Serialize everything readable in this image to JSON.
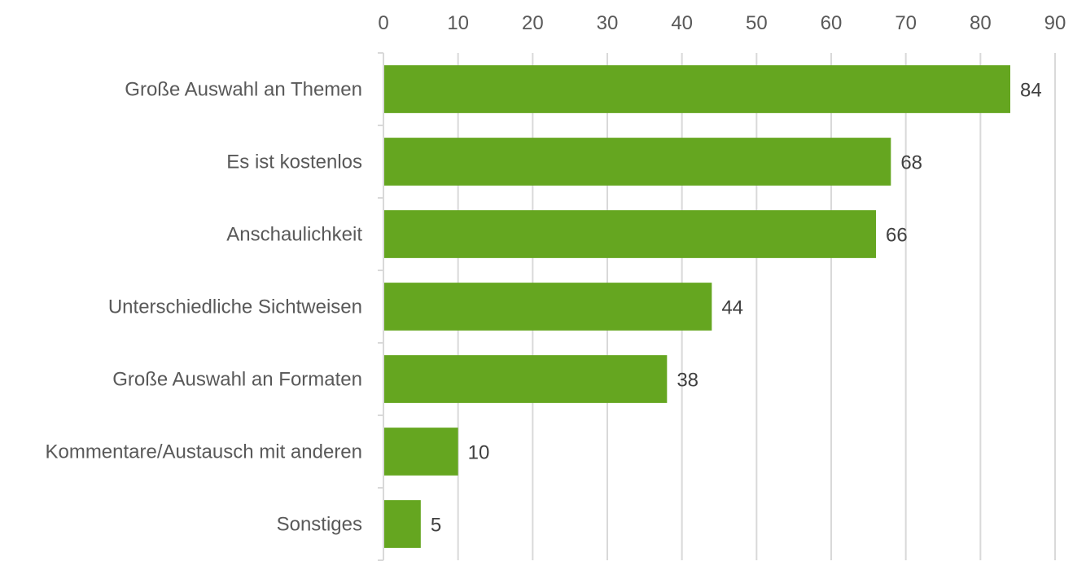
{
  "chart_data": {
    "type": "bar",
    "orientation": "horizontal",
    "categories": [
      "Große Auswahl an Themen",
      "Es ist kostenlos",
      "Anschaulichkeit",
      "Unterschiedliche Sichtweisen",
      "Große Auswahl an Formaten",
      "Kommentare/Austausch mit anderen",
      "Sonstiges"
    ],
    "values": [
      84,
      68,
      66,
      44,
      38,
      10,
      5
    ],
    "xlim": [
      0,
      90
    ],
    "xticks": [
      0,
      10,
      20,
      30,
      40,
      50,
      60,
      70,
      80,
      90
    ],
    "x_axis_position": "top",
    "grid": true,
    "data_labels": true,
    "bar_color": "#65a620",
    "title": "",
    "xlabel": "",
    "ylabel": ""
  }
}
